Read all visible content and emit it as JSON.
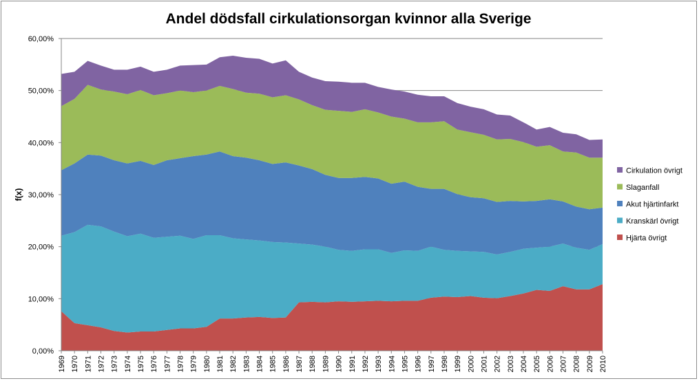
{
  "chart_data": {
    "type": "area",
    "stacked": true,
    "title": "Andel dödsfall cirkulationsorgan kvinnor alla Sverige",
    "xlabel": "",
    "ylabel": "f(x)",
    "ylim": [
      0,
      60
    ],
    "yticks": [
      "0,00%",
      "10,00%",
      "20,00%",
      "30,00%",
      "40,00%",
      "50,00%",
      "60,00%"
    ],
    "grid": "horizontal",
    "legend_position": "right",
    "x": [
      1969,
      1970,
      1971,
      1972,
      1973,
      1974,
      1975,
      1976,
      1977,
      1978,
      1979,
      1980,
      1981,
      1982,
      1983,
      1984,
      1985,
      1986,
      1987,
      1988,
      1989,
      1990,
      1991,
      1992,
      1993,
      1994,
      1995,
      1996,
      1997,
      1998,
      1999,
      2000,
      2001,
      2002,
      2003,
      2004,
      2005,
      2006,
      2007,
      2008,
      2009,
      2010
    ],
    "series": [
      {
        "name": "Hjärta övrigt",
        "color": "#c0504d",
        "values": [
          7.6,
          5.3,
          4.9,
          4.5,
          3.8,
          3.5,
          3.7,
          3.7,
          4.0,
          4.3,
          4.3,
          4.6,
          6.2,
          6.2,
          6.4,
          6.5,
          6.3,
          6.4,
          9.3,
          9.4,
          9.3,
          9.5,
          9.4,
          9.5,
          9.6,
          9.5,
          9.6,
          9.6,
          10.2,
          10.4,
          10.3,
          10.5,
          10.2,
          10.1,
          10.5,
          11.0,
          11.7,
          11.5,
          12.4,
          11.8,
          11.8,
          12.8
        ]
      },
      {
        "name": "Kranskärl övrigt",
        "color": "#4bacc6",
        "values": [
          14.5,
          17.5,
          19.3,
          19.4,
          19.1,
          18.5,
          18.8,
          18.0,
          17.9,
          17.8,
          17.2,
          17.6,
          16.0,
          15.4,
          15.0,
          14.7,
          14.6,
          14.4,
          11.3,
          11.0,
          10.7,
          9.9,
          9.8,
          10.0,
          9.9,
          9.3,
          9.7,
          9.6,
          9.8,
          9.0,
          8.9,
          8.6,
          8.8,
          8.4,
          8.5,
          8.6,
          8.1,
          8.5,
          8.2,
          8.0,
          7.6,
          7.7
        ]
      },
      {
        "name": "Akut hjärtinfarkt",
        "color": "#4f81bd",
        "values": [
          12.6,
          13.2,
          13.5,
          13.6,
          13.7,
          14.0,
          14.0,
          14.0,
          14.7,
          14.9,
          15.9,
          15.5,
          16.1,
          15.8,
          15.7,
          15.4,
          15.0,
          15.4,
          15.0,
          14.5,
          13.8,
          13.8,
          14.0,
          13.9,
          13.6,
          13.3,
          13.2,
          12.3,
          11.1,
          11.7,
          10.9,
          10.4,
          10.3,
          10.1,
          9.8,
          9.1,
          9.0,
          9.1,
          8.1,
          7.9,
          7.8,
          7.0
        ]
      },
      {
        "name": "Slaganfall",
        "color": "#9bbb59",
        "values": [
          12.3,
          12.4,
          13.4,
          12.7,
          13.2,
          13.3,
          13.6,
          13.4,
          12.9,
          13.0,
          12.3,
          12.3,
          12.6,
          12.9,
          12.5,
          12.8,
          12.8,
          12.9,
          12.7,
          12.3,
          12.5,
          12.9,
          12.7,
          13.0,
          12.7,
          12.9,
          12.1,
          12.4,
          12.8,
          13.0,
          12.4,
          12.5,
          12.2,
          12.0,
          11.9,
          11.4,
          10.4,
          10.4,
          9.6,
          10.4,
          9.9,
          9.6
        ]
      },
      {
        "name": "Cirkulation övrigt",
        "color": "#8064a2",
        "values": [
          6.2,
          5.2,
          4.6,
          4.6,
          4.2,
          4.7,
          4.5,
          4.5,
          4.5,
          4.8,
          5.2,
          5.0,
          5.5,
          6.4,
          6.7,
          6.7,
          6.5,
          6.7,
          5.3,
          5.3,
          5.5,
          5.6,
          5.6,
          5.1,
          4.9,
          5.2,
          5.2,
          5.3,
          5.0,
          4.8,
          5.1,
          4.9,
          4.9,
          4.8,
          4.5,
          3.8,
          3.3,
          3.5,
          3.6,
          3.5,
          3.4,
          3.5
        ]
      }
    ]
  }
}
